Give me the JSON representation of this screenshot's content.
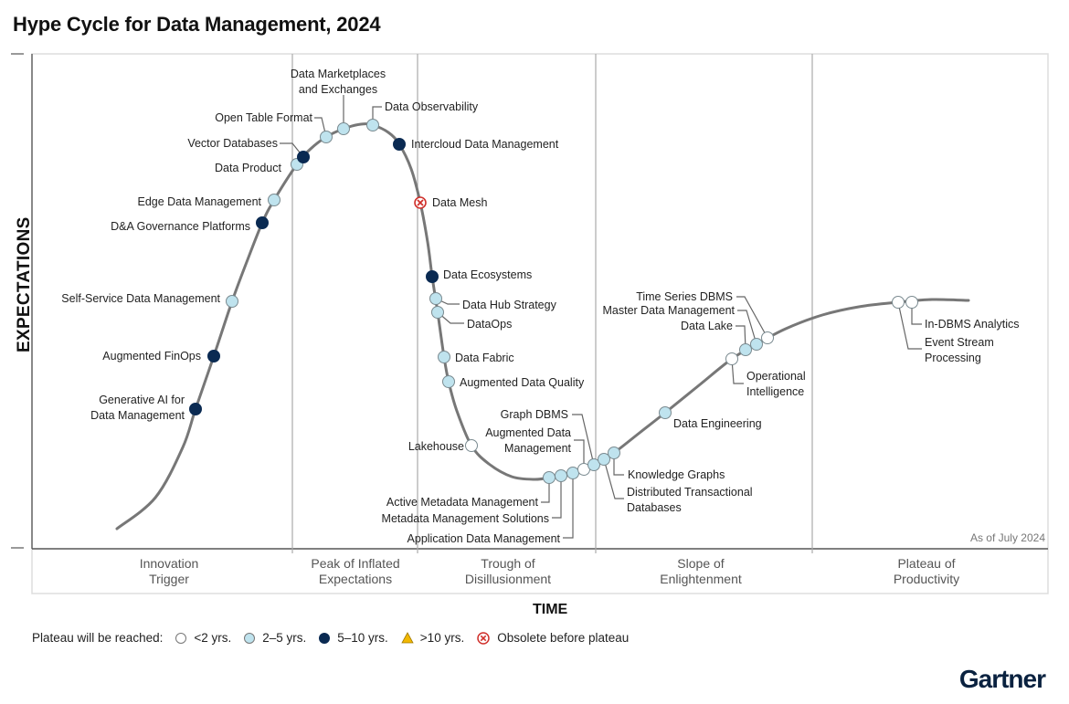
{
  "title": "Hype Cycle for Data Management, 2024",
  "y_axis_label": "EXPECTATIONS",
  "x_axis_label": "TIME",
  "as_of": "As of July 2024",
  "phases": [
    {
      "line1": "Innovation",
      "line2": "Trigger"
    },
    {
      "line1": "Peak of Inflated",
      "line2": "Expectations"
    },
    {
      "line1": "Trough of",
      "line2": "Disillusionment"
    },
    {
      "line1": "Slope of",
      "line2": "Enlightenment"
    },
    {
      "line1": "Plateau of",
      "line2": "Productivity"
    }
  ],
  "legend": {
    "prefix": "Plateau will be reached:",
    "items": [
      {
        "key": "lt2",
        "label": "<2 yrs."
      },
      {
        "key": "2to5",
        "label": "2–5 yrs."
      },
      {
        "key": "5to10",
        "label": "5–10 yrs."
      },
      {
        "key": "gt10",
        "label": ">10 yrs."
      },
      {
        "key": "obsolete",
        "label": "Obsolete before plateau"
      }
    ]
  },
  "colors": {
    "lt2": "#ffffff",
    "2to5": "#bfe3ee",
    "5to10": "#0a2a52",
    "gt10": "#f2b800",
    "obsolete": "#d0302b",
    "curve": "#777777"
  },
  "brand": "Gartner",
  "technologies": [
    {
      "name": [
        "Generative AI for",
        "Data Management"
      ],
      "plateau": "5to10"
    },
    {
      "name": [
        "Augmented FinOps"
      ],
      "plateau": "5to10"
    },
    {
      "name": [
        "Self-Service Data Management"
      ],
      "plateau": "2to5"
    },
    {
      "name": [
        "D&A Governance Platforms"
      ],
      "plateau": "5to10"
    },
    {
      "name": [
        "Edge Data Management"
      ],
      "plateau": "2to5"
    },
    {
      "name": [
        "Data Product"
      ],
      "plateau": "2to5"
    },
    {
      "name": [
        "Vector Databases"
      ],
      "plateau": "5to10"
    },
    {
      "name": [
        "Open Table Format"
      ],
      "plateau": "2to5"
    },
    {
      "name": [
        "Data Marketplaces",
        "and Exchanges"
      ],
      "plateau": "2to5"
    },
    {
      "name": [
        "Data Observability"
      ],
      "plateau": "2to5"
    },
    {
      "name": [
        "Intercloud Data Management"
      ],
      "plateau": "5to10"
    },
    {
      "name": [
        "Data Mesh"
      ],
      "plateau": "obsolete"
    },
    {
      "name": [
        "Data Ecosystems"
      ],
      "plateau": "5to10"
    },
    {
      "name": [
        "Data Hub Strategy"
      ],
      "plateau": "2to5"
    },
    {
      "name": [
        "DataOps"
      ],
      "plateau": "2to5"
    },
    {
      "name": [
        "Data Fabric"
      ],
      "plateau": "2to5"
    },
    {
      "name": [
        "Augmented Data Quality"
      ],
      "plateau": "2to5"
    },
    {
      "name": [
        "Lakehouse"
      ],
      "plateau": "lt2"
    },
    {
      "name": [
        "Active Metadata Management"
      ],
      "plateau": "2to5"
    },
    {
      "name": [
        "Metadata Management Solutions"
      ],
      "plateau": "2to5"
    },
    {
      "name": [
        "Application Data Management"
      ],
      "plateau": "2to5"
    },
    {
      "name": [
        "Augmented Data",
        "Management"
      ],
      "plateau": "lt2"
    },
    {
      "name": [
        "Graph DBMS"
      ],
      "plateau": "2to5"
    },
    {
      "name": [
        "Distributed Transactional",
        "Databases"
      ],
      "plateau": "2to5"
    },
    {
      "name": [
        "Knowledge Graphs"
      ],
      "plateau": "2to5"
    },
    {
      "name": [
        "Data Engineering"
      ],
      "plateau": "2to5"
    },
    {
      "name": [
        "Operational",
        "Intelligence"
      ],
      "plateau": "lt2"
    },
    {
      "name": [
        "Data Lake"
      ],
      "plateau": "2to5"
    },
    {
      "name": [
        "Master Data Management"
      ],
      "plateau": "2to5"
    },
    {
      "name": [
        "Time Series DBMS"
      ],
      "plateau": "lt2"
    },
    {
      "name": [
        "In-DBMS Analytics"
      ],
      "plateau": "lt2"
    },
    {
      "name": [
        "Event Stream",
        "Processing"
      ],
      "plateau": "lt2"
    }
  ]
}
